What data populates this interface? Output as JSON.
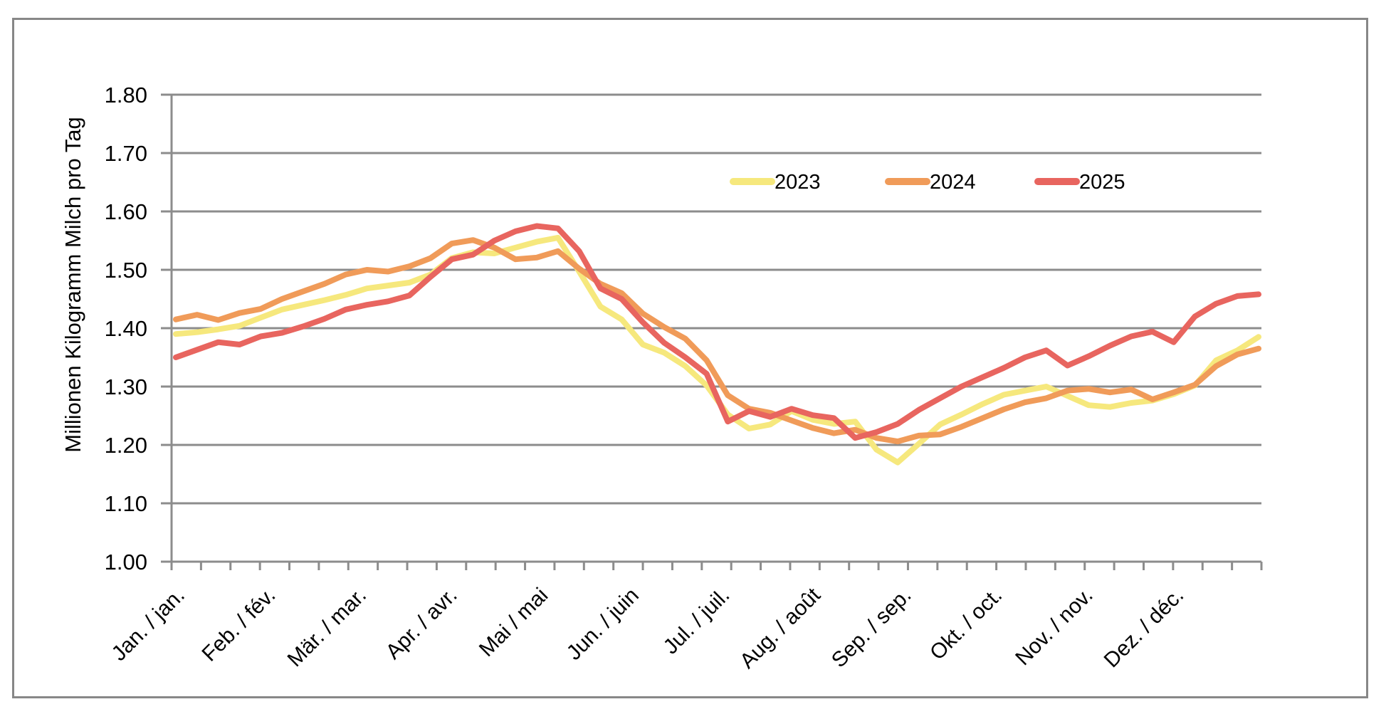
{
  "figure": {
    "background": "#ffffff",
    "frame_border_color": "#878787",
    "grid_color": "#8C8C8C",
    "text_color": "#000000"
  },
  "chart_data": {
    "type": "line",
    "title": "",
    "ylabel": "Millionen Kilogramm Milch pro Tag",
    "xlabel": "",
    "ylim": [
      1.0,
      1.8
    ],
    "ytick_step": 0.1,
    "ytick_labels": [
      "1.00",
      "1.10",
      "1.20",
      "1.30",
      "1.40",
      "1.50",
      "1.60",
      "1.70",
      "1.80"
    ],
    "grid": "horizontal",
    "x_minor_tick_intervals": 37,
    "legend_position": "inside-upper-right",
    "x_categories": [
      "Jan. / jan.",
      "Feb. / fév.",
      "Mär. / mar.",
      "Apr. / avr.",
      "Mai / mai",
      "Jun. / juin",
      "Jul. / juil.",
      "Aug. / août",
      "Sep. / sep.",
      "Okt. / oct.",
      "Nov. / nov.",
      "Dez. / déc."
    ],
    "sampling_note": "52 points per series, one per week Jan-Dec, values in million kg milk per day",
    "points_per_series": 52,
    "series": [
      {
        "name": "2023",
        "color": "#F6E87D",
        "values": [
          1.39,
          1.393,
          1.398,
          1.404,
          1.418,
          1.432,
          1.44,
          1.448,
          1.457,
          1.468,
          1.473,
          1.478,
          1.492,
          1.52,
          1.53,
          1.528,
          1.538,
          1.548,
          1.555,
          1.497,
          1.437,
          1.415,
          1.372,
          1.358,
          1.335,
          1.302,
          1.252,
          1.228,
          1.235,
          1.258,
          1.243,
          1.236,
          1.24,
          1.192,
          1.17,
          1.202,
          1.235,
          1.252,
          1.27,
          1.286,
          1.293,
          1.3,
          1.284,
          1.268,
          1.265,
          1.272,
          1.276,
          1.287,
          1.302,
          1.345,
          1.362,
          1.385
        ]
      },
      {
        "name": "2024",
        "color": "#F09B59",
        "values": [
          1.415,
          1.423,
          1.414,
          1.426,
          1.433,
          1.45,
          1.463,
          1.476,
          1.492,
          1.5,
          1.497,
          1.506,
          1.52,
          1.545,
          1.551,
          1.538,
          1.518,
          1.521,
          1.532,
          1.502,
          1.476,
          1.46,
          1.425,
          1.402,
          1.382,
          1.345,
          1.285,
          1.262,
          1.255,
          1.242,
          1.229,
          1.22,
          1.226,
          1.212,
          1.206,
          1.216,
          1.218,
          1.231,
          1.246,
          1.261,
          1.273,
          1.28,
          1.293,
          1.296,
          1.29,
          1.295,
          1.278,
          1.29,
          1.303,
          1.335,
          1.355,
          1.365
        ]
      },
      {
        "name": "2025",
        "color": "#E8655F",
        "values": [
          1.35,
          1.363,
          1.376,
          1.372,
          1.386,
          1.392,
          1.403,
          1.416,
          1.432,
          1.44,
          1.446,
          1.456,
          1.488,
          1.518,
          1.526,
          1.55,
          1.566,
          1.575,
          1.571,
          1.532,
          1.468,
          1.45,
          1.41,
          1.375,
          1.35,
          1.322,
          1.24,
          1.258,
          1.248,
          1.262,
          1.251,
          1.246,
          1.212,
          1.222,
          1.236,
          1.26,
          1.28,
          1.3,
          1.316,
          1.332,
          1.35,
          1.362,
          1.336,
          1.352,
          1.37,
          1.386,
          1.394,
          1.376,
          1.42,
          1.442,
          1.455,
          1.458
        ]
      }
    ],
    "legend": [
      {
        "label": "2023",
        "color": "#F6E87D"
      },
      {
        "label": "2024",
        "color": "#F09B59"
      },
      {
        "label": "2025",
        "color": "#E8655F"
      }
    ]
  }
}
